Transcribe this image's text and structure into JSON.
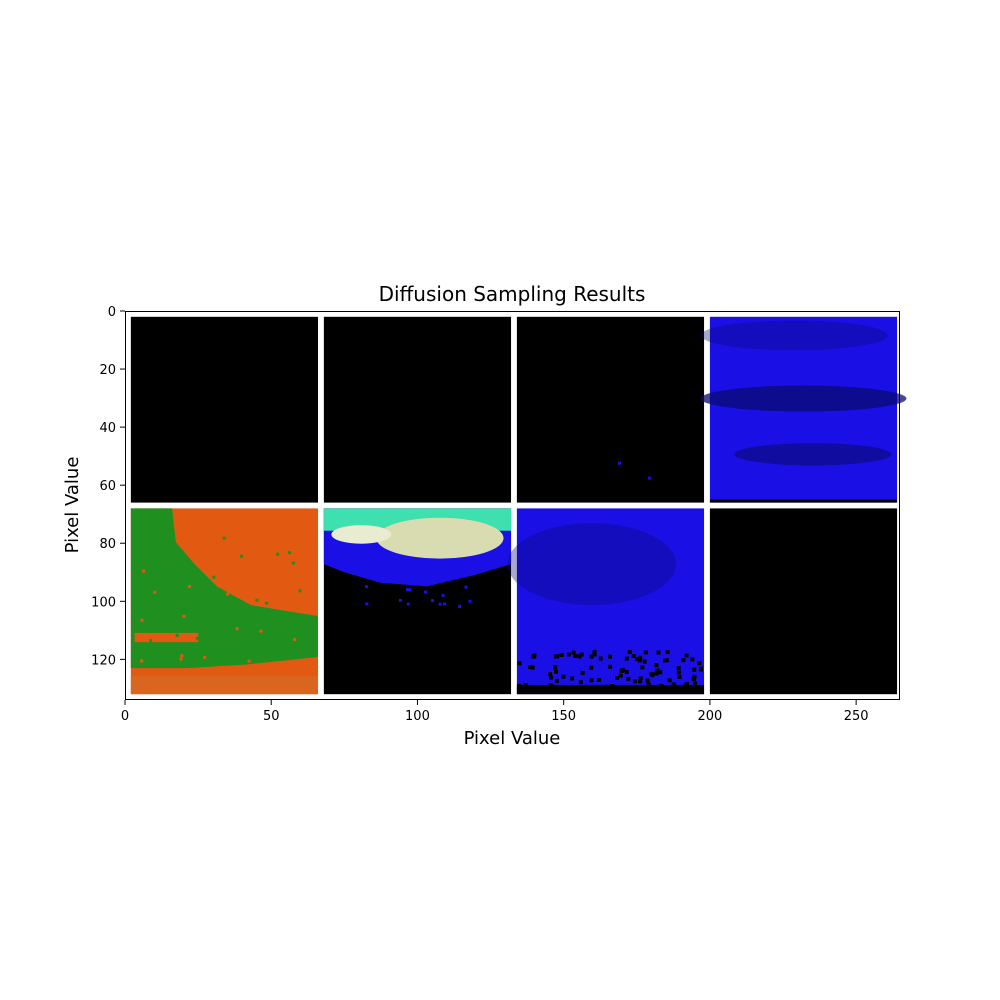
{
  "chart_data": {
    "type": "image-grid",
    "title": "Diffusion Sampling Results",
    "xlabel": "Pixel Value",
    "ylabel": "Pixel Value",
    "xlim": [
      0,
      265
    ],
    "ylim": [
      134,
      0
    ],
    "x_ticks": [
      0,
      50,
      100,
      150,
      200,
      250
    ],
    "y_ticks": [
      0,
      20,
      40,
      60,
      80,
      100,
      120
    ],
    "grid": false,
    "layout": {
      "rows": 2,
      "cols": 4,
      "tile_size": 64,
      "padding": 2
    },
    "tiles": [
      {
        "row": 0,
        "col": 0,
        "content": "black"
      },
      {
        "row": 0,
        "col": 1,
        "content": "black"
      },
      {
        "row": 0,
        "col": 2,
        "content": "black with two small blue dots"
      },
      {
        "row": 0,
        "col": 3,
        "content": "blue with darker horizontal bands"
      },
      {
        "row": 1,
        "col": 0,
        "content": "orange with green region on left"
      },
      {
        "row": 1,
        "col": 1,
        "content": "light cloud shape on blue band over black"
      },
      {
        "row": 1,
        "col": 2,
        "content": "blue texture with black speckles at bottom"
      },
      {
        "row": 1,
        "col": 3,
        "content": "black"
      }
    ],
    "colors": {
      "black": "#000000",
      "blue": "#1a10e6",
      "dark_blue": "#0a0a70",
      "orange": "#e25a12",
      "green": "#1f8f1f",
      "cream": "#d9dcb0",
      "teal": "#3fe0b0"
    }
  }
}
